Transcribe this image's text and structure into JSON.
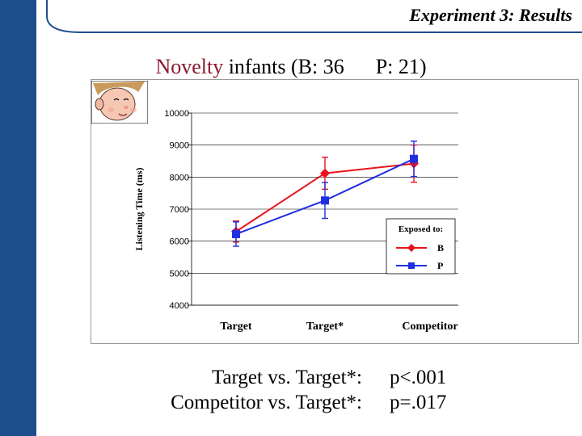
{
  "slide": {
    "title": "Experiment 3: Results",
    "subtitle_novelty": "Novelty",
    "subtitle_rest": " infants  (B: 36",
    "subtitle_p": "P: 21)"
  },
  "chart_data": {
    "type": "line",
    "title": "",
    "xlabel": "",
    "ylabel": "Listening Time (ms)",
    "ylim": [
      4000,
      10000
    ],
    "yticks": [
      4000,
      5000,
      6000,
      7000,
      8000,
      9000,
      10000
    ],
    "ytick_labels": [
      "4000",
      "5000",
      "6000",
      "7000",
      "8000",
      "9000",
      "10000"
    ],
    "grid": true,
    "categories": [
      "Target",
      "Target*",
      "Competitor"
    ],
    "legend": {
      "title": "Exposed to:",
      "placement": "right"
    },
    "series": [
      {
        "name": "B",
        "color": "#e8141c",
        "marker": "diamond",
        "values": [
          6300,
          8120,
          8420
        ],
        "errors": [
          330,
          500,
          580
        ]
      },
      {
        "name": "P",
        "color": "#1f2fe0",
        "marker": "square",
        "values": [
          6220,
          7270,
          8570
        ],
        "errors": [
          380,
          560,
          550
        ]
      }
    ]
  },
  "footer": {
    "comparisons": [
      {
        "label": "Target vs. Target*:",
        "p": "p<.001"
      },
      {
        "label": "Competitor  vs. Target*:",
        "p": "p=.017"
      }
    ]
  }
}
